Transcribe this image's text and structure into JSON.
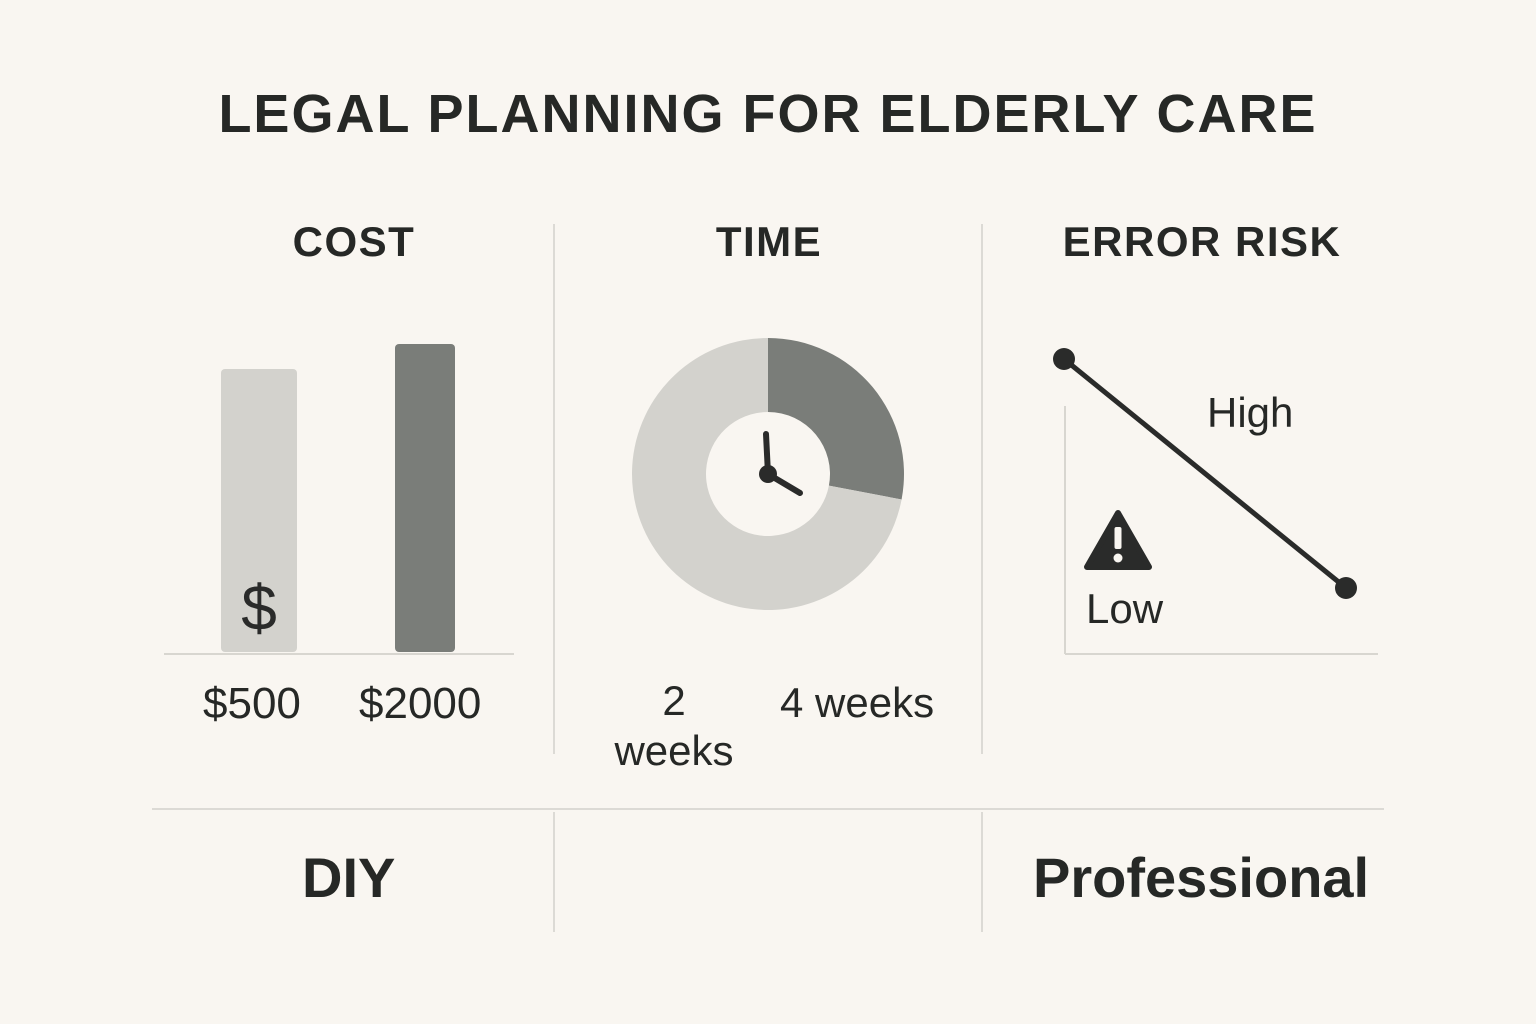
{
  "title": "LEGAL PLANNING FOR ELDERLY CARE",
  "colors": {
    "background": "#f9f6f1",
    "text": "#262826",
    "light_fill": "#d3d2cd",
    "dark_fill": "#7a7d79",
    "divider": "#dcdad5",
    "accent_line": "#2a2b2a"
  },
  "panels": {
    "cost": {
      "heading": "COST",
      "icon": "dollar-icon",
      "icon_glyph": "$"
    },
    "time": {
      "heading": "TIME",
      "icon": "clock-icon"
    },
    "error_risk": {
      "heading": "ERROR RISK",
      "icon": "warning-icon"
    }
  },
  "footer": {
    "left": "DIY",
    "right": "Professional"
  },
  "chart_data": [
    {
      "type": "bar",
      "title": "COST",
      "categories": [
        "$500",
        "$2000"
      ],
      "values": [
        500,
        2000
      ],
      "colors": [
        "#d3d2cd",
        "#7a7d79"
      ]
    },
    {
      "type": "pie",
      "title": "TIME",
      "labels": [
        "2 weeks",
        "4 weeks"
      ],
      "values": [
        2,
        4
      ],
      "colors": [
        "#7a7d79",
        "#d3d2cd"
      ]
    },
    {
      "type": "line",
      "title": "ERROR RISK",
      "labels": [
        "High",
        "Low"
      ]
    }
  ]
}
